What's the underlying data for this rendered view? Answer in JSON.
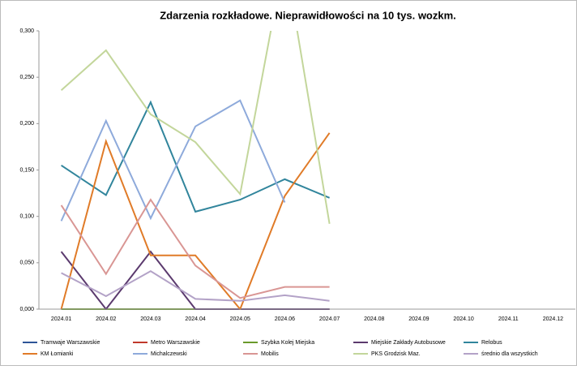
{
  "chart_data": {
    "type": "line",
    "title": "Zdarzenia rozkładowe. Nieprawidłowości na 10 tys. wozkm.",
    "categories": [
      "2024.01",
      "2024.02",
      "2024.03",
      "2024.04",
      "2024.05",
      "2024.06",
      "2024.07",
      "2024.08",
      "2024.09",
      "2024.10",
      "2024.11",
      "2024.12"
    ],
    "ylim": [
      0,
      0.3
    ],
    "yticks": [
      {
        "value": 0,
        "label": "0,000"
      },
      {
        "value": 0.05,
        "label": "0,050"
      },
      {
        "value": 0.1,
        "label": "0,100"
      },
      {
        "value": 0.15,
        "label": "0,150"
      },
      {
        "value": 0.2,
        "label": "0,200"
      },
      {
        "value": 0.25,
        "label": "0,250"
      },
      {
        "value": 0.3,
        "label": "0,300"
      }
    ],
    "grid": false,
    "legend": "bottom",
    "series": [
      {
        "name": "Tramwaje Warszawskie",
        "color": "#2e5597",
        "values": [
          0,
          0,
          0,
          0,
          0,
          0,
          0,
          null,
          null,
          null,
          null,
          null
        ]
      },
      {
        "name": "Metro Warszawskie",
        "color": "#c0392b",
        "values": [
          0,
          0,
          0,
          0,
          0,
          0,
          0,
          null,
          null,
          null,
          null,
          null
        ]
      },
      {
        "name": "Szybka Kolej Miejska",
        "color": "#6a9a2b",
        "values": [
          0,
          0,
          0,
          0,
          null,
          null,
          null,
          null,
          null,
          null,
          null,
          null
        ]
      },
      {
        "name": "Miejskie Zakłady Autobusowe",
        "color": "#5b3a6e",
        "values": [
          0.062,
          0,
          0.062,
          0,
          0,
          0,
          0,
          null,
          null,
          null,
          null,
          null
        ]
      },
      {
        "name": "Relobus",
        "color": "#31859c",
        "values": [
          0.155,
          0.123,
          0.223,
          0.105,
          0.118,
          0.14,
          0.12,
          null,
          null,
          null,
          null,
          null
        ]
      },
      {
        "name": "KM Łomianki",
        "color": "#e07b28",
        "values": [
          0,
          0.181,
          0.058,
          0.058,
          0,
          0.122,
          0.19,
          null,
          null,
          null,
          null,
          null
        ]
      },
      {
        "name": "Michalczewski",
        "color": "#8eaadb",
        "values": [
          0.095,
          0.203,
          0.098,
          0.197,
          0.225,
          0.115,
          null,
          null,
          null,
          null,
          null,
          null
        ]
      },
      {
        "name": "Mobilis",
        "color": "#d99694",
        "values": [
          0.112,
          0.038,
          0.118,
          0.047,
          0.012,
          0.024,
          0.024,
          null,
          null,
          null,
          null,
          null
        ]
      },
      {
        "name": "PKS Grodzisk Maz.",
        "color": "#c3d69b",
        "values": [
          0.236,
          0.279,
          0.21,
          0.18,
          0.124,
          0.38,
          0.092,
          null,
          null,
          null,
          null,
          null
        ]
      },
      {
        "name": "średnio dla wszystkich",
        "color": "#b3a2c7",
        "values": [
          0.039,
          0.014,
          0.041,
          0.011,
          0.009,
          0.015,
          0.009,
          null,
          null,
          null,
          null,
          null
        ]
      }
    ]
  }
}
